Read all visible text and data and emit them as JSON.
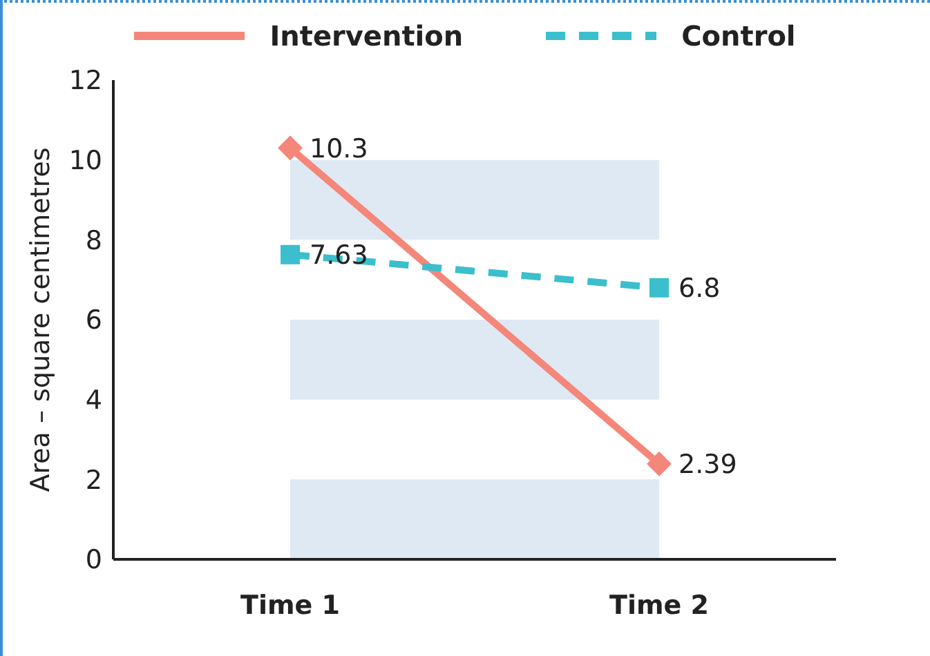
{
  "chart_data": {
    "type": "line",
    "ylabel": "Area – square centimetres",
    "categories": [
      "Time 1",
      "Time 2"
    ],
    "series": [
      {
        "name": "Intervention",
        "color": "#f4877a",
        "values": [
          10.3,
          2.39
        ],
        "marker": "diamond",
        "line_style": "solid"
      },
      {
        "name": "Control",
        "color": "#3bbfcc",
        "values": [
          7.63,
          6.8
        ],
        "marker": "square",
        "line_style": "dashed"
      }
    ],
    "ylim": [
      0,
      12
    ],
    "yticks": [
      0,
      2,
      4,
      6,
      8,
      10,
      12
    ],
    "legend": "top",
    "data_labels": true,
    "bands": [
      {
        "axis": "y",
        "from": 0,
        "to": 2,
        "color": "#dfe9f4"
      },
      {
        "axis": "y",
        "from": 4,
        "to": 6,
        "color": "#dfe9f4"
      },
      {
        "axis": "y",
        "from": 8,
        "to": 10,
        "color": "#dfe9f4"
      }
    ]
  }
}
